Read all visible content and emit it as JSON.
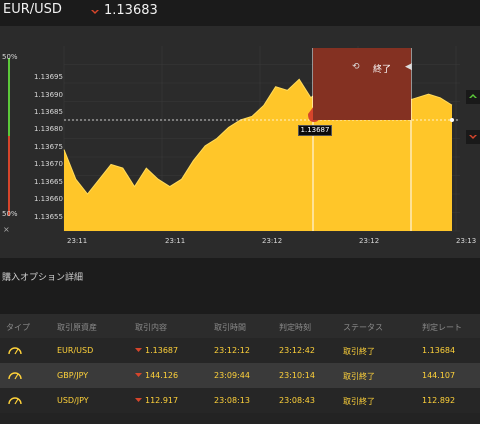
{
  "header": {
    "pair": "EUR/USD",
    "rate": "1.13683",
    "direction_icon": "down-arrow-icon"
  },
  "chart": {
    "pct_top": "50%",
    "pct_bottom": "50%",
    "close_label": "×",
    "end_label": "終了",
    "current_tag": "1.13687",
    "y_ticks": [
      "1.13695",
      "1.13690",
      "1.13685",
      "1.13680",
      "1.13675",
      "1.13670",
      "1.13665",
      "1.13660",
      "1.13655"
    ],
    "x_ticks": [
      "23:11",
      "23:11",
      "23:12",
      "23:12",
      "23:13"
    ],
    "colors": {
      "area": "#ffc629",
      "end_zone": "#843122",
      "up": "#5cc83a",
      "down": "#d6452b"
    }
  },
  "chart_data": {
    "type": "area",
    "ylim": [
      1.1365,
      1.137
    ],
    "series": [
      {
        "values": [
          1.13672,
          1.13664,
          1.1366,
          1.13664,
          1.13668,
          1.13667,
          1.13662,
          1.13667,
          1.13664,
          1.13662,
          1.13664,
          1.13669,
          1.13673,
          1.13675,
          1.13678,
          1.1368,
          1.13681,
          1.13684,
          1.13689,
          1.13688,
          1.13691,
          1.13686,
          1.13689,
          1.13688,
          1.13685,
          1.13686,
          1.13687,
          1.13685,
          1.13686,
          1.13685,
          1.13686,
          1.13687,
          1.13686,
          1.13684
        ]
      }
    ]
  },
  "details": {
    "title": "購入オプション詳細",
    "headers": [
      "タイプ",
      "取引原資産",
      "取引内容",
      "取引時間",
      "判定時刻",
      "ステータス",
      "判定レート"
    ],
    "rows": [
      {
        "asset": "EUR/USD",
        "content": "1.13687",
        "trade_time": "23:12:12",
        "judge_time": "23:12:42",
        "status": "取引終了",
        "rate": "1.13684"
      },
      {
        "asset": "GBP/JPY",
        "content": "144.126",
        "trade_time": "23:09:44",
        "judge_time": "23:10:14",
        "status": "取引終了",
        "rate": "144.107"
      },
      {
        "asset": "USD/JPY",
        "content": "112.917",
        "trade_time": "23:08:13",
        "judge_time": "23:08:43",
        "status": "取引終了",
        "rate": "112.892"
      }
    ]
  }
}
